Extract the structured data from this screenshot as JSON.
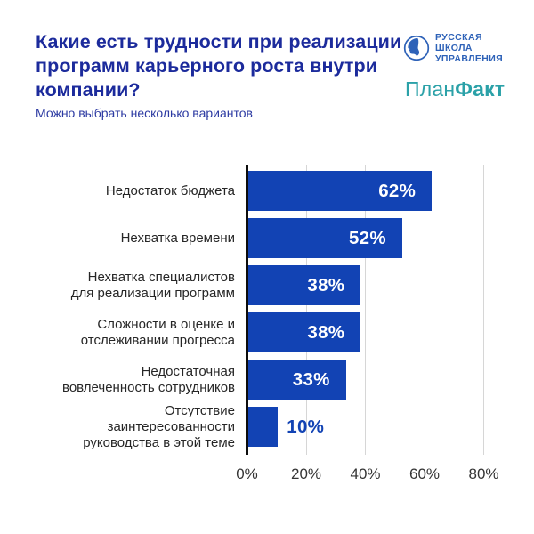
{
  "page": {
    "title": "Какие есть трудности при реализации\nпрограмм карьерного роста внутри\nкомпании?",
    "subtitle": "Можно выбрать несколько вариантов"
  },
  "logos": {
    "rsu": {
      "name": "Русская Школа Управления",
      "line1": "РУССКАЯ",
      "line2": "ШКОЛА",
      "line3": "УПРАВЛЕНИЯ",
      "color": "#2e62b8"
    },
    "planfact": {
      "part1": "План",
      "part2": "Факт",
      "color": "#2ba1a8"
    }
  },
  "colors": {
    "bar": "#1243b4",
    "title": "#1c2b9c",
    "grid": "#d6d6d6",
    "axis": "#0d0d0d",
    "value_label_inside": "#ffffff",
    "value_label_outside": "#1243b4"
  },
  "chart_data": {
    "type": "bar",
    "orientation": "horizontal",
    "title": "Какие есть трудности при реализации программ карьерного роста внутри компании?",
    "subtitle": "Можно выбрать несколько вариантов",
    "categories": [
      "Недостаток бюджета",
      "Нехватка времени",
      "Нехватка специалистов для реализации программ",
      "Сложности в оценке и отслеживании прогресса",
      "Недостаточная вовлеченность сотрудников",
      "Отсутствие заинтересованности руководства в этой теме"
    ],
    "values": [
      62,
      52,
      38,
      38,
      33,
      10
    ],
    "xlim": [
      0,
      80
    ],
    "x_ticks": [
      "0%",
      "20%",
      "40%",
      "60%",
      "80%"
    ],
    "grid": "vertical",
    "legend": "none",
    "rows": [
      {
        "label": "Недостаток бюджета",
        "value": 62,
        "value_label": "62%"
      },
      {
        "label": "Нехватка времени",
        "value": 52,
        "value_label": "52%"
      },
      {
        "label": "Нехватка специалистов\nдля реализации программ",
        "value": 38,
        "value_label": "38%"
      },
      {
        "label": "Сложности в оценке и\nотслеживании прогресса",
        "value": 38,
        "value_label": "38%"
      },
      {
        "label": "Недостаточная\nвовлеченность сотрудников",
        "value": 33,
        "value_label": "33%"
      },
      {
        "label": "Отсутствие\nзаинтересованности\nруководства в этой теме",
        "value": 10,
        "value_label": "10%"
      }
    ]
  }
}
